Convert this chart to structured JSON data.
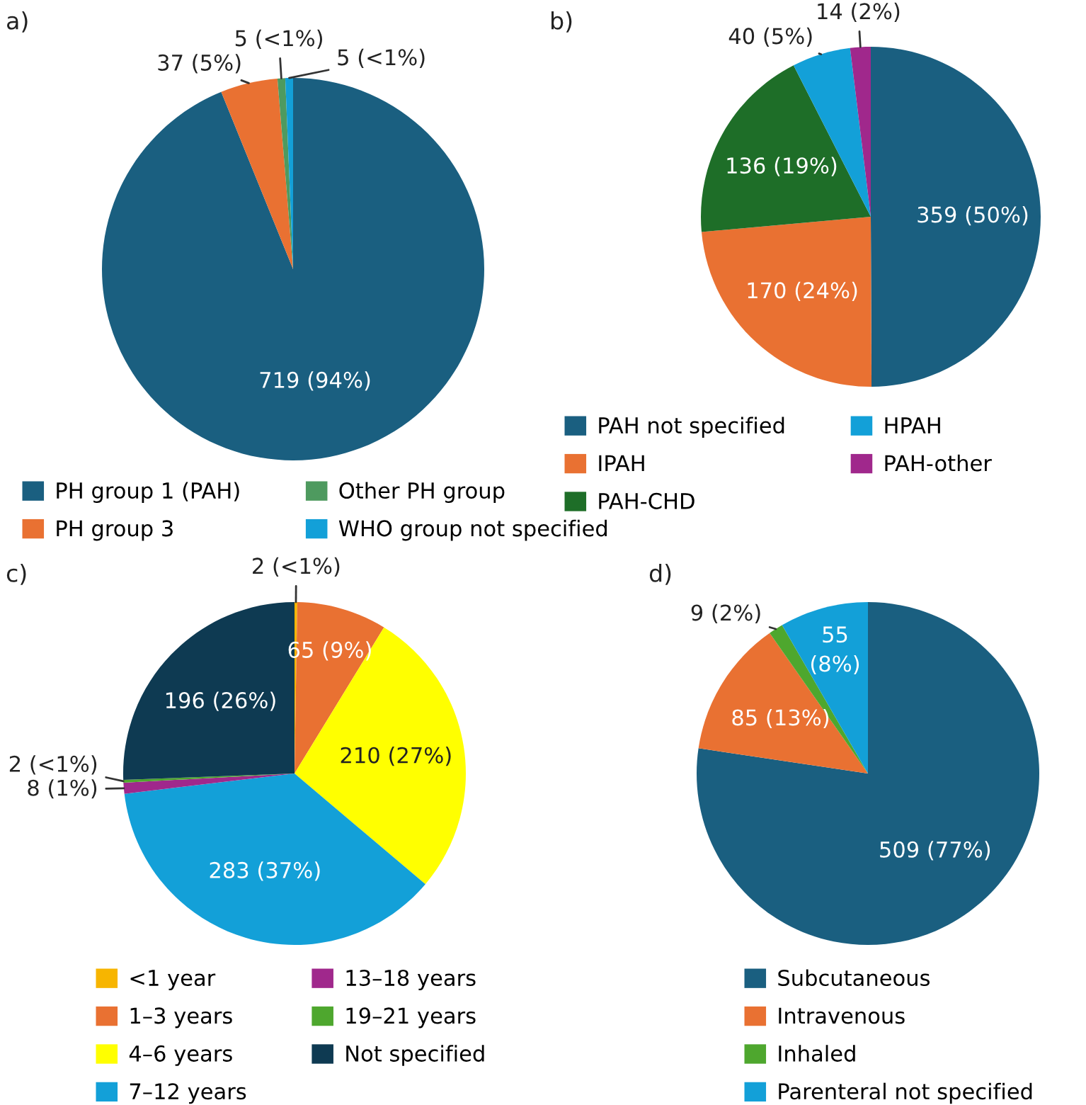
{
  "chart_data": [
    {
      "type": "pie",
      "title": "a)",
      "categories": [
        "PH group 1 (PAH)",
        "PH group 3",
        "Other PH group",
        "WHO group not specified"
      ],
      "values": [
        719,
        37,
        5,
        5
      ],
      "colors": [
        "#1a5f80",
        "#e97132",
        "#4e9a5f",
        "#13a0d8"
      ],
      "value_labels": [
        "719 (94%)",
        "37 (5%)",
        "5 (<1%)",
        "5 (<1%)"
      ],
      "legend": "bottom"
    },
    {
      "type": "pie",
      "title": "b)",
      "categories": [
        "PAH not specified",
        "IPAH",
        "PAH-CHD",
        "HPAH",
        "PAH-other"
      ],
      "values": [
        359,
        170,
        136,
        40,
        14
      ],
      "colors": [
        "#1a5f80",
        "#e97132",
        "#1e6e28",
        "#13a0d8",
        "#a0288c"
      ],
      "value_labels": [
        "359 (50%)",
        "170 (24%)",
        "136 (19%)",
        "40 (5%)",
        "14 (2%)"
      ],
      "legend": "bottom"
    },
    {
      "type": "pie",
      "title": "c)",
      "categories": [
        "<1 year",
        "1–3 years",
        "4–6 years",
        "7–12 years",
        "13–18 years",
        "19–21 years",
        "Not specified"
      ],
      "values": [
        2,
        65,
        210,
        283,
        8,
        2,
        196
      ],
      "colors": [
        "#f7b500",
        "#e97132",
        "#ffff00",
        "#13a0d8",
        "#a0288c",
        "#4ea72e",
        "#0e3a52"
      ],
      "value_labels": [
        "2 (<1%)",
        "65 (9%)",
        "210 (27%)",
        "283 (37%)",
        "8 (1%)",
        "2 (<1%)",
        "196 (26%)"
      ],
      "legend": "bottom"
    },
    {
      "type": "pie",
      "title": "d)",
      "categories": [
        "Subcutaneous",
        "Intravenous",
        "Inhaled",
        "Parenteral not specified"
      ],
      "values": [
        509,
        85,
        9,
        55
      ],
      "colors": [
        "#1a5f80",
        "#e97132",
        "#4ea72e",
        "#13a0d8"
      ],
      "value_labels": [
        "509 (77%)",
        "85 (13%)",
        "9 (2%)",
        "55\n(8%)"
      ],
      "legend": "bottom"
    }
  ]
}
